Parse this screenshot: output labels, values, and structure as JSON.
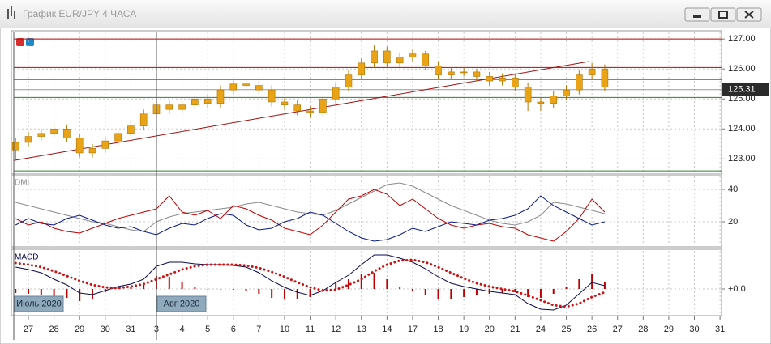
{
  "window": {
    "title": "График EUR/JPY  4 ЧАСА"
  },
  "chart_data": [
    {
      "type": "candlestick",
      "xlim": [
        -0.57,
        27.06
      ],
      "xticks": [
        {
          "value": 0,
          "label": "27"
        },
        {
          "value": 1,
          "label": "28"
        },
        {
          "value": 2,
          "label": "29"
        },
        {
          "value": 3,
          "label": "30"
        },
        {
          "value": 4,
          "label": "31"
        },
        {
          "value": 5,
          "label": "3"
        },
        {
          "value": 6,
          "label": "4"
        },
        {
          "value": 7,
          "label": "5"
        },
        {
          "value": 8,
          "label": "6"
        },
        {
          "value": 9,
          "label": "7"
        },
        {
          "value": 10,
          "label": "10"
        },
        {
          "value": 11,
          "label": "11"
        },
        {
          "value": 12,
          "label": "12"
        },
        {
          "value": 13,
          "label": "13"
        },
        {
          "value": 14,
          "label": "14"
        },
        {
          "value": 15,
          "label": "17"
        },
        {
          "value": 16,
          "label": "18"
        },
        {
          "value": 17,
          "label": "19"
        },
        {
          "value": 18,
          "label": "20"
        },
        {
          "value": 19,
          "label": "21"
        },
        {
          "value": 20,
          "label": "24"
        },
        {
          "value": 21,
          "label": "25"
        },
        {
          "value": 22,
          "label": "26"
        },
        {
          "value": 23,
          "label": "27"
        },
        {
          "value": 24,
          "label": "28"
        },
        {
          "value": 25,
          "label": "29"
        },
        {
          "value": 26,
          "label": "30"
        },
        {
          "value": 27,
          "label": "31"
        }
      ],
      "period_markers": [
        {
          "value": -0.57,
          "label": "Июль 2020"
        },
        {
          "value": 5,
          "label": "Авг 2020"
        }
      ],
      "ylim": [
        122.55,
        127.22
      ],
      "yticks": [
        {
          "value": 123,
          "label": "123.00"
        },
        {
          "value": 124,
          "label": "124.00"
        },
        {
          "value": 125,
          "label": "125.00"
        },
        {
          "value": 126,
          "label": "126.00"
        },
        {
          "value": 127,
          "label": "127.00"
        }
      ],
      "grid": true,
      "color": "#e8a317",
      "x": [
        -0.5,
        0,
        0.5,
        1,
        1.5,
        2,
        2.5,
        3,
        3.5,
        4,
        4.5,
        5,
        5.5,
        6,
        6.5,
        7,
        7.5,
        8,
        8.5,
        9,
        9.5,
        10,
        10.5,
        11,
        11.5,
        12,
        12.5,
        13,
        13.5,
        14,
        14.5,
        15,
        15.5,
        16,
        16.5,
        17,
        17.5,
        18,
        18.5,
        19,
        19.5,
        20,
        20.5,
        21,
        21.5,
        22,
        22.5
      ],
      "open": [
        123.3,
        123.55,
        123.75,
        123.85,
        124.0,
        123.7,
        123.2,
        123.35,
        123.6,
        123.85,
        124.1,
        124.5,
        124.8,
        124.65,
        124.8,
        125.0,
        124.85,
        125.3,
        125.5,
        125.45,
        125.3,
        124.9,
        124.8,
        124.6,
        124.55,
        125.0,
        125.4,
        125.8,
        126.2,
        126.6,
        126.2,
        126.4,
        126.5,
        126.1,
        125.8,
        125.9,
        125.9,
        125.75,
        125.6,
        125.7,
        125.4,
        124.9,
        124.85,
        125.1,
        125.3,
        125.8,
        126.0
      ],
      "high": [
        123.7,
        123.9,
        124.0,
        124.15,
        124.15,
        123.85,
        123.5,
        123.75,
        124.0,
        124.25,
        124.65,
        124.95,
        124.95,
        124.95,
        125.15,
        125.15,
        125.45,
        125.65,
        125.65,
        125.6,
        125.45,
        125.05,
        124.95,
        124.75,
        125.15,
        125.55,
        125.95,
        126.35,
        126.8,
        126.75,
        126.55,
        126.65,
        126.6,
        126.25,
        126.05,
        126.05,
        126.0,
        125.9,
        125.85,
        125.85,
        125.55,
        125.05,
        125.25,
        125.45,
        125.95,
        126.2,
        126.15
      ],
      "low": [
        123.0,
        123.4,
        123.6,
        123.7,
        123.55,
        123.05,
        123.05,
        123.2,
        123.45,
        123.7,
        123.95,
        124.35,
        124.5,
        124.5,
        124.65,
        124.7,
        124.7,
        125.15,
        125.3,
        125.15,
        124.75,
        124.65,
        124.45,
        124.4,
        124.4,
        124.85,
        125.25,
        125.65,
        126.05,
        126.05,
        126.05,
        126.25,
        125.95,
        125.65,
        125.65,
        125.75,
        125.6,
        125.45,
        125.45,
        125.25,
        124.6,
        124.6,
        124.7,
        124.95,
        125.15,
        125.65,
        125.25
      ],
      "close": [
        123.55,
        123.75,
        123.85,
        124.0,
        123.7,
        123.2,
        123.35,
        123.6,
        123.85,
        124.1,
        124.5,
        124.8,
        124.65,
        124.8,
        125.0,
        124.85,
        125.3,
        125.5,
        125.45,
        125.3,
        124.9,
        124.8,
        124.6,
        124.55,
        125.0,
        125.4,
        125.8,
        126.2,
        126.6,
        126.2,
        126.4,
        126.5,
        126.1,
        125.8,
        125.9,
        125.9,
        125.75,
        125.6,
        125.7,
        125.4,
        124.9,
        124.85,
        125.1,
        125.3,
        125.8,
        126.0,
        125.4
      ],
      "levels": [
        {
          "value": 127.0,
          "color": "#c00000"
        },
        {
          "value": 126.05,
          "color": "#c00000"
        },
        {
          "value": 125.65,
          "color": "#c00000"
        },
        {
          "value": 125.05,
          "color": "#2e7d32"
        },
        {
          "value": 124.4,
          "color": "#2e7d32"
        },
        {
          "value": 122.6,
          "color": "#2e7d32"
        }
      ],
      "trendline": {
        "x": [
          -0.57,
          21.9
        ],
        "y": [
          122.95,
          126.25
        ],
        "color": "#a01010"
      },
      "last_price": 125.31
    },
    {
      "type": "line",
      "title": "DMI",
      "ylim": [
        5.5,
        48
      ],
      "yticks": [
        20,
        40
      ],
      "grid": true,
      "x": [
        -0.5,
        0,
        0.5,
        1,
        1.5,
        2,
        2.5,
        3,
        3.5,
        4,
        4.5,
        5,
        5.5,
        6,
        6.5,
        7,
        7.5,
        8,
        8.5,
        9,
        9.5,
        10,
        10.5,
        11,
        11.5,
        12,
        12.5,
        13,
        13.5,
        14,
        14.5,
        15,
        15.5,
        16,
        16.5,
        17,
        17.5,
        18,
        18.5,
        19,
        19.5,
        20,
        20.5,
        21,
        21.5,
        22,
        22.5
      ],
      "series": [
        {
          "color": "#8a8a8a",
          "values": [
            32,
            30,
            28,
            26,
            24,
            22,
            20,
            19,
            17,
            15,
            14,
            20,
            23,
            25,
            26,
            27,
            28,
            29,
            31,
            32,
            30,
            28,
            26,
            25,
            24,
            27,
            31,
            35,
            39,
            43,
            44,
            42,
            38,
            34,
            30,
            27,
            24,
            21,
            19,
            18,
            20,
            24,
            32,
            31,
            29,
            27,
            25
          ]
        },
        {
          "color": "#c00000",
          "values": [
            22,
            18,
            20,
            16,
            14,
            13,
            16,
            19,
            22,
            24,
            26,
            28,
            36,
            26,
            24,
            27,
            22,
            30,
            28,
            24,
            21,
            16,
            14,
            12,
            18,
            26,
            34,
            36,
            40,
            37,
            30,
            34,
            28,
            22,
            18,
            16,
            18,
            19,
            17,
            16,
            12,
            10,
            8,
            14,
            22,
            34,
            26
          ]
        },
        {
          "color": "#0a1a8a",
          "values": [
            18,
            22,
            19,
            18,
            22,
            24,
            21,
            18,
            16,
            17,
            14,
            12,
            16,
            19,
            18,
            22,
            25,
            24,
            18,
            15,
            16,
            20,
            22,
            26,
            24,
            19,
            14,
            10,
            8,
            9,
            12,
            16,
            14,
            17,
            20,
            19,
            18,
            21,
            22,
            24,
            28,
            36,
            30,
            26,
            22,
            18,
            20
          ]
        }
      ]
    },
    {
      "type": "macd",
      "title": "MACD",
      "ylim": [
        -0.31,
        0.47
      ],
      "yticks": [
        {
          "value": 0,
          "label": "+0.0"
        }
      ],
      "grid": true,
      "x": [
        -0.5,
        0,
        0.5,
        1,
        1.5,
        2,
        2.5,
        3,
        3.5,
        4,
        4.5,
        5,
        5.5,
        6,
        6.5,
        7,
        7.5,
        8,
        8.5,
        9,
        9.5,
        10,
        10.5,
        11,
        11.5,
        12,
        12.5,
        13,
        13.5,
        14,
        14.5,
        15,
        15.5,
        16,
        16.5,
        17,
        17.5,
        18,
        18.5,
        19,
        19.5,
        20,
        20.5,
        21,
        21.5,
        22,
        22.5
      ],
      "histogram": {
        "color": "#c00000",
        "values": [
          -0.05,
          -0.06,
          -0.07,
          -0.1,
          -0.11,
          -0.15,
          -0.12,
          -0.04,
          0.02,
          0.03,
          0.06,
          0.16,
          0.15,
          0.09,
          0.03,
          0.0,
          0.0,
          -0.01,
          -0.02,
          -0.06,
          -0.11,
          -0.13,
          -0.12,
          -0.1,
          0.0,
          0.09,
          0.12,
          0.18,
          0.2,
          0.12,
          0.03,
          -0.03,
          -0.08,
          -0.12,
          -0.13,
          -0.1,
          -0.07,
          -0.06,
          -0.05,
          -0.04,
          -0.1,
          -0.11,
          -0.06,
          0.02,
          0.12,
          0.18,
          0.08
        ]
      },
      "macd": {
        "color": "#0a0a50",
        "values": [
          0.27,
          0.24,
          0.2,
          0.12,
          0.05,
          -0.05,
          -0.07,
          -0.02,
          0.03,
          0.06,
          0.12,
          0.28,
          0.33,
          0.33,
          0.31,
          0.3,
          0.3,
          0.29,
          0.27,
          0.2,
          0.1,
          0.02,
          -0.04,
          -0.08,
          -0.02,
          0.08,
          0.17,
          0.3,
          0.42,
          0.42,
          0.38,
          0.33,
          0.25,
          0.15,
          0.07,
          0.03,
          0.0,
          -0.03,
          -0.05,
          -0.07,
          -0.18,
          -0.25,
          -0.26,
          -0.2,
          -0.06,
          0.08,
          0.04
        ]
      },
      "signal": {
        "color": "#d01010",
        "values": [
          0.32,
          0.3,
          0.27,
          0.22,
          0.16,
          0.1,
          0.05,
          0.02,
          0.01,
          0.03,
          0.06,
          0.12,
          0.18,
          0.24,
          0.28,
          0.3,
          0.3,
          0.3,
          0.29,
          0.26,
          0.21,
          0.15,
          0.08,
          0.02,
          -0.02,
          -0.01,
          0.05,
          0.12,
          0.22,
          0.3,
          0.35,
          0.36,
          0.33,
          0.27,
          0.2,
          0.13,
          0.07,
          0.03,
          0.0,
          -0.03,
          -0.08,
          -0.14,
          -0.2,
          -0.22,
          -0.18,
          -0.1,
          -0.04
        ]
      }
    }
  ]
}
